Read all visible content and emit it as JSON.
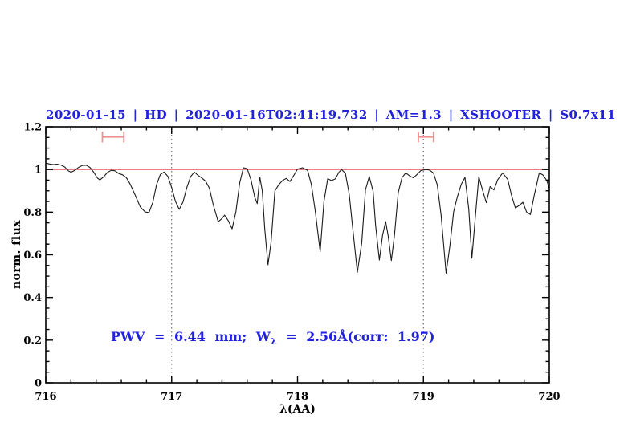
{
  "chart_data": {
    "type": "line",
    "title": "2020-01-15 | HD | 2020-01-16T02:41:19.732 | AM=1.3 | XSHOOTER | S0.7x11",
    "xlabel": "λ(AA)",
    "ylabel": "norm. flux",
    "xlim": [
      716,
      720
    ],
    "ylim": [
      0,
      1.2
    ],
    "grid": false,
    "x_tick_labels": [
      "716",
      "717",
      "718",
      "719",
      "720"
    ],
    "x_major_ticks": [
      716,
      717,
      718,
      719,
      720
    ],
    "x_minor_step": 0.2,
    "y_tick_labels": [
      "0",
      "0.2",
      "0.4",
      "0.6",
      "0.8",
      "1",
      "1.2"
    ],
    "y_major_ticks": [
      0,
      0.2,
      0.4,
      0.6,
      0.8,
      1.0,
      1.2
    ],
    "y_minor_step": 0.05,
    "guide_lines_x": [
      717,
      719
    ],
    "continuum_line_y": 1.0,
    "annotation": {
      "prefix": "PWV = 6.44 mm; W",
      "subscript": "λ",
      "suffix": " = 2.56Å(corr: 1.97)"
    },
    "range_markers": [
      {
        "x_start": 716.45,
        "x_end": 716.62,
        "y": 1.152,
        "cap_half_height": 0.025
      },
      {
        "x_start": 718.96,
        "x_end": 719.08,
        "y": 1.152,
        "cap_half_height": 0.025
      }
    ],
    "colors": {
      "title_blue": "#2222dd",
      "annotation_blue": "#2222dd",
      "spectrum_black": "#1b1b1b",
      "continuum_red": "#e86e6e",
      "marker_red": "#f29090",
      "guide_gray": "#555555",
      "axis_black": "#000000"
    },
    "series": [
      {
        "name": "telluric-spectrum",
        "points": [
          [
            716.0,
            1.03
          ],
          [
            716.03,
            1.026
          ],
          [
            716.06,
            1.023
          ],
          [
            716.09,
            1.025
          ],
          [
            716.12,
            1.021
          ],
          [
            716.15,
            1.012
          ],
          [
            716.18,
            0.994
          ],
          [
            716.2,
            0.987
          ],
          [
            716.23,
            0.996
          ],
          [
            716.26,
            1.01
          ],
          [
            716.29,
            1.019
          ],
          [
            716.32,
            1.02
          ],
          [
            716.35,
            1.01
          ],
          [
            716.38,
            0.988
          ],
          [
            716.41,
            0.96
          ],
          [
            716.43,
            0.951
          ],
          [
            716.46,
            0.966
          ],
          [
            716.49,
            0.986
          ],
          [
            716.52,
            0.996
          ],
          [
            716.55,
            0.994
          ],
          [
            716.58,
            0.981
          ],
          [
            716.61,
            0.975
          ],
          [
            716.64,
            0.962
          ],
          [
            716.67,
            0.932
          ],
          [
            716.71,
            0.88
          ],
          [
            716.75,
            0.825
          ],
          [
            716.79,
            0.801
          ],
          [
            716.82,
            0.798
          ],
          [
            716.85,
            0.845
          ],
          [
            716.88,
            0.928
          ],
          [
            716.91,
            0.976
          ],
          [
            716.94,
            0.988
          ],
          [
            716.97,
            0.968
          ],
          [
            717.0,
            0.915
          ],
          [
            717.03,
            0.85
          ],
          [
            717.06,
            0.813
          ],
          [
            717.09,
            0.848
          ],
          [
            717.12,
            0.915
          ],
          [
            717.15,
            0.966
          ],
          [
            717.18,
            0.988
          ],
          [
            717.21,
            0.972
          ],
          [
            717.24,
            0.96
          ],
          [
            717.27,
            0.945
          ],
          [
            717.3,
            0.912
          ],
          [
            717.33,
            0.835
          ],
          [
            717.37,
            0.755
          ],
          [
            717.4,
            0.77
          ],
          [
            717.42,
            0.786
          ],
          [
            717.45,
            0.76
          ],
          [
            717.48,
            0.722
          ],
          [
            717.51,
            0.8
          ],
          [
            717.54,
            0.935
          ],
          [
            717.57,
            1.008
          ],
          [
            717.6,
            1.004
          ],
          [
            717.63,
            0.952
          ],
          [
            717.66,
            0.87
          ],
          [
            717.68,
            0.84
          ],
          [
            717.7,
            0.965
          ],
          [
            717.72,
            0.9
          ],
          [
            717.74,
            0.72
          ],
          [
            717.765,
            0.553
          ],
          [
            717.79,
            0.66
          ],
          [
            717.82,
            0.9
          ],
          [
            717.85,
            0.928
          ],
          [
            717.88,
            0.948
          ],
          [
            717.91,
            0.958
          ],
          [
            717.94,
            0.944
          ],
          [
            717.97,
            0.972
          ],
          [
            718.0,
            1.002
          ],
          [
            718.04,
            1.008
          ],
          [
            718.08,
            0.996
          ],
          [
            718.11,
            0.93
          ],
          [
            718.14,
            0.81
          ],
          [
            718.18,
            0.615
          ],
          [
            718.21,
            0.85
          ],
          [
            718.24,
            0.957
          ],
          [
            718.27,
            0.948
          ],
          [
            718.3,
            0.956
          ],
          [
            718.33,
            0.988
          ],
          [
            718.35,
            1.0
          ],
          [
            718.38,
            0.982
          ],
          [
            718.41,
            0.885
          ],
          [
            718.44,
            0.715
          ],
          [
            718.475,
            0.518
          ],
          [
            718.51,
            0.655
          ],
          [
            718.54,
            0.905
          ],
          [
            718.57,
            0.967
          ],
          [
            718.6,
            0.898
          ],
          [
            718.62,
            0.738
          ],
          [
            718.65,
            0.575
          ],
          [
            718.675,
            0.69
          ],
          [
            718.7,
            0.756
          ],
          [
            718.72,
            0.688
          ],
          [
            718.745,
            0.573
          ],
          [
            718.77,
            0.692
          ],
          [
            718.8,
            0.892
          ],
          [
            718.83,
            0.962
          ],
          [
            718.86,
            0.984
          ],
          [
            718.89,
            0.97
          ],
          [
            718.92,
            0.961
          ],
          [
            718.95,
            0.977
          ],
          [
            718.98,
            0.995
          ],
          [
            719.02,
            1.0
          ],
          [
            719.05,
            0.997
          ],
          [
            719.08,
            0.983
          ],
          [
            719.11,
            0.928
          ],
          [
            719.14,
            0.788
          ],
          [
            719.18,
            0.514
          ],
          [
            719.21,
            0.642
          ],
          [
            719.24,
            0.802
          ],
          [
            719.27,
            0.873
          ],
          [
            719.3,
            0.93
          ],
          [
            719.33,
            0.963
          ],
          [
            719.36,
            0.815
          ],
          [
            719.385,
            0.584
          ],
          [
            719.41,
            0.76
          ],
          [
            719.44,
            0.966
          ],
          [
            719.47,
            0.903
          ],
          [
            719.5,
            0.844
          ],
          [
            719.53,
            0.92
          ],
          [
            719.56,
            0.904
          ],
          [
            719.59,
            0.952
          ],
          [
            719.63,
            0.984
          ],
          [
            719.67,
            0.953
          ],
          [
            719.7,
            0.878
          ],
          [
            719.73,
            0.82
          ],
          [
            719.76,
            0.831
          ],
          [
            719.79,
            0.846
          ],
          [
            719.82,
            0.8
          ],
          [
            719.85,
            0.789
          ],
          [
            719.88,
            0.878
          ],
          [
            719.92,
            0.984
          ],
          [
            719.95,
            0.974
          ],
          [
            719.98,
            0.948
          ],
          [
            720.0,
            0.912
          ]
        ]
      }
    ]
  }
}
